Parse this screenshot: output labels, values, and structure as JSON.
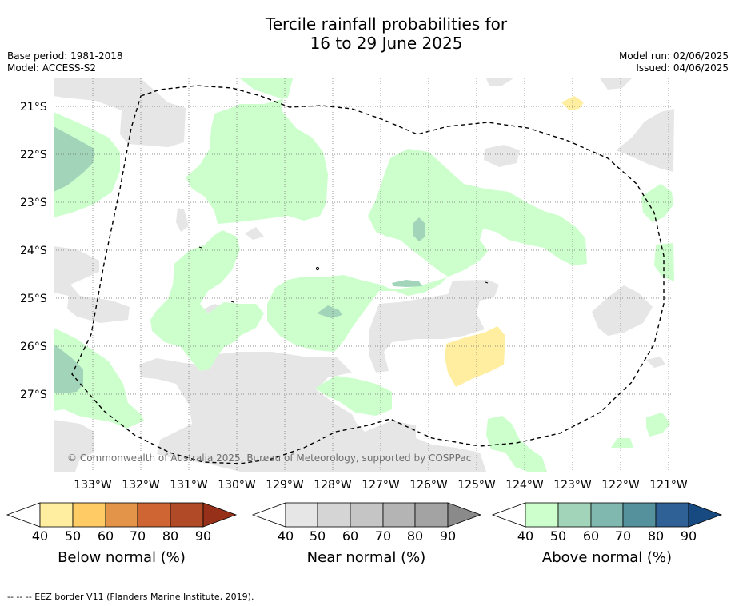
{
  "header": {
    "title_line1": "Tercile rainfall probabilities for",
    "title_line2": "16 to 29 June 2025",
    "base_period": "Base period: 1981-2018",
    "model": "Model: ACCESS-S2",
    "model_run": "Model run: 02/06/2025",
    "issued": "Issued: 04/06/2025"
  },
  "map": {
    "lat_labels": [
      "21°S",
      "22°S",
      "23°S",
      "24°S",
      "25°S",
      "26°S",
      "27°S"
    ],
    "lon_labels": [
      "133°W",
      "132°W",
      "131°W",
      "130°W",
      "129°W",
      "128°W",
      "127°W",
      "126°W",
      "125°W",
      "124°W",
      "123°W",
      "122°W",
      "121°W"
    ],
    "copyright": "© Commonwealth of Australia 2025, Bureau of Meteorology, supported by COSPPac",
    "colors": {
      "near_40": "#e6e6e6",
      "above_40": "#ccffcc",
      "above_50": "#a1d4b8",
      "below_40": "#ffeea0"
    }
  },
  "colorbars": [
    {
      "title": "Below normal (%)",
      "ticks": [
        "40",
        "50",
        "60",
        "70",
        "80",
        "90"
      ],
      "colors": [
        "#ffeea0",
        "#fecb65",
        "#e39448",
        "#cf6533",
        "#b14a27",
        "#963019"
      ]
    },
    {
      "title": "Near normal (%)",
      "ticks": [
        "40",
        "50",
        "60",
        "70",
        "80",
        "90"
      ],
      "colors": [
        "#e6e6e6",
        "#d5d5d5",
        "#c5c5c5",
        "#b4b4b4",
        "#a3a3a3",
        "#8a8a8a"
      ]
    },
    {
      "title": "Above normal (%)",
      "ticks": [
        "40",
        "50",
        "60",
        "70",
        "80",
        "90"
      ],
      "colors": [
        "#ccffcc",
        "#a1d4b8",
        "#80b8b0",
        "#55919d",
        "#2f6096",
        "#174a80"
      ]
    }
  ],
  "footnote": "--  --  -- EEZ border V11 (Flanders Marine Institute, 2019)."
}
